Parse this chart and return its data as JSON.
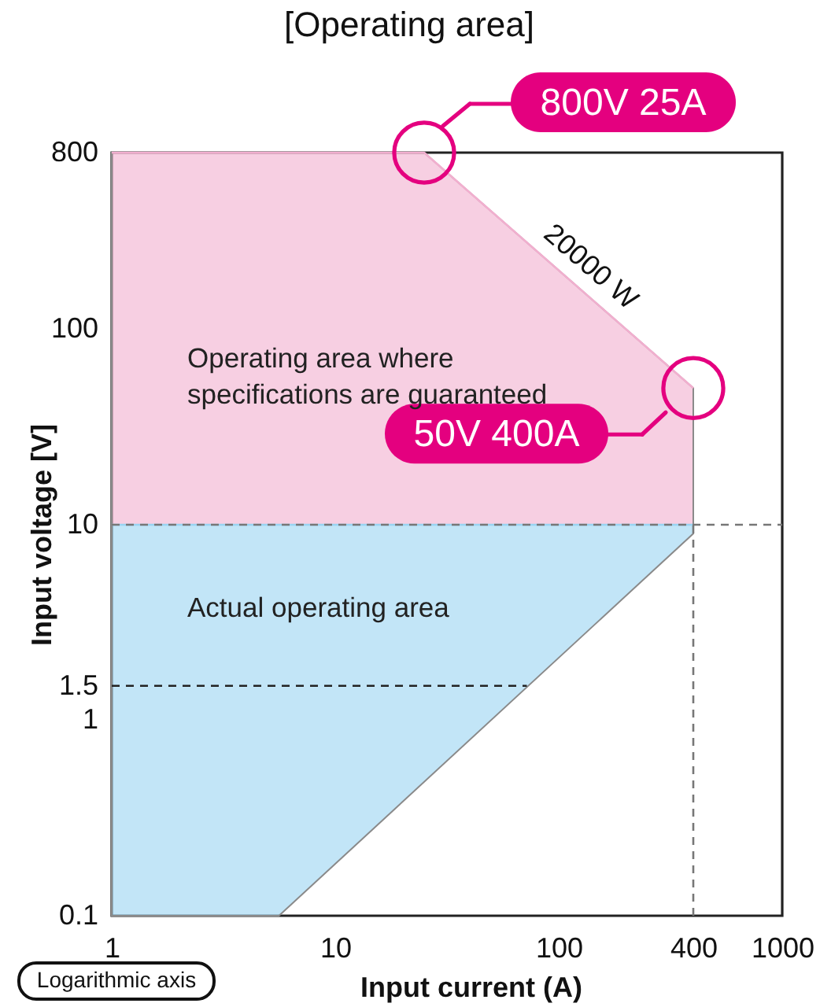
{
  "chart_data": {
    "type": "line",
    "title": "[Operating area]",
    "xlabel": "Input current (A)",
    "ylabel": "Input voltage [V]",
    "log": "xy",
    "xlim": [
      1,
      1000
    ],
    "ylim": [
      0.1,
      800
    ],
    "xticks": [
      1,
      10,
      100,
      400,
      1000
    ],
    "yticks": [
      0.1,
      1,
      1.5,
      10,
      100,
      800
    ],
    "series": [
      {
        "color": "#f2afcf",
        "x": [
          1,
          25,
          400
        ],
        "values": [
          800,
          800,
          50
        ],
        "lower": [
          10,
          10,
          10
        ],
        "upper": [
          800,
          800,
          50
        ]
      },
      {
        "color": "#99d4f2",
        "x": [
          1,
          5.6,
          400
        ],
        "values": [
          10,
          10,
          10
        ],
        "lower": [
          0.1,
          0.1,
          9
        ],
        "upper": [
          10,
          10,
          10
        ]
      },
      {
        "color": "#222222",
        "line_style": "dashed",
        "x": [
          1,
          72
        ],
        "values": [
          1.5,
          1.5
        ]
      },
      {
        "color": "#777777",
        "line_style": "dashed",
        "x": [
          400,
          400
        ],
        "values": [
          0.1,
          10
        ]
      },
      {
        "color": "#777777",
        "line_style": "dashed",
        "x": [
          1,
          1000
        ],
        "values": [
          10,
          10
        ]
      }
    ],
    "annotations": [
      "800V 25A",
      "50V 400A",
      "20000 W",
      "Operating area where specifications are guaranteed",
      "Actual operating area",
      "Logarithmic axis"
    ]
  }
}
